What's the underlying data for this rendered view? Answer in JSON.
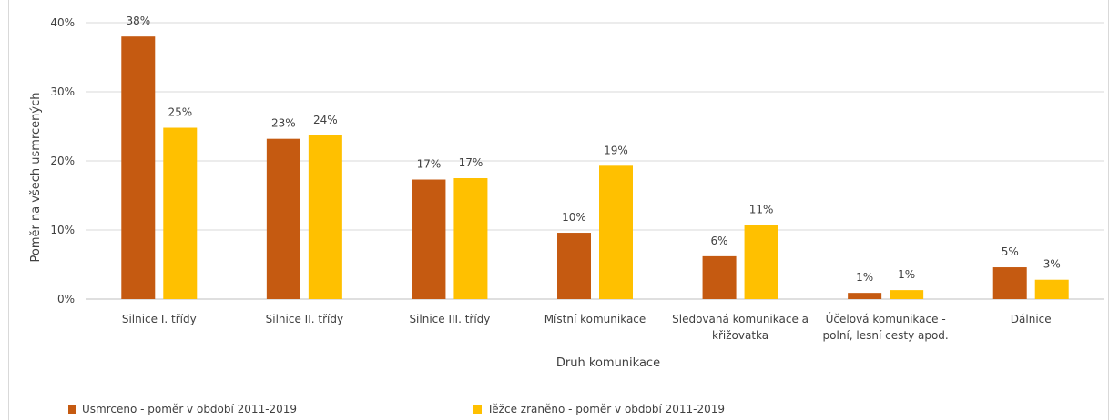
{
  "chart_data": {
    "type": "bar",
    "title": "",
    "xlabel": "Druh komunikace",
    "ylabel": "Poměr na všech usmrcených",
    "ylim": [
      0,
      40
    ],
    "yticks": [
      "0%",
      "10%",
      "20%",
      "30%",
      "40%"
    ],
    "categories": [
      [
        "Silnice I. třídy"
      ],
      [
        "Silnice II. třídy"
      ],
      [
        "Silnice III. třídy"
      ],
      [
        "Místní komunikace"
      ],
      [
        "Sledovaná komunikace a",
        "křižovatka"
      ],
      [
        "Účelová komunikace -",
        "polní, lesní cesty apod."
      ],
      [
        "Dálnice"
      ]
    ],
    "series": [
      {
        "name": "Usmrceno - poměr v období 2011-2019",
        "color": "#c55a11",
        "values": [
          38,
          23.2,
          17.3,
          9.6,
          6.2,
          0.9,
          4.6
        ],
        "labels": [
          "38%",
          "23%",
          "17%",
          "10%",
          "6%",
          "1%",
          "5%"
        ]
      },
      {
        "name": "Těžce zraněno - poměr v období 2011-2019",
        "color": "#ffc000",
        "values": [
          24.8,
          23.7,
          17.5,
          19.3,
          10.7,
          1.3,
          2.8
        ],
        "labels": [
          "25%",
          "24%",
          "17%",
          "19%",
          "11%",
          "1%",
          "3%"
        ]
      }
    ],
    "legend_position": "bottom-left"
  }
}
